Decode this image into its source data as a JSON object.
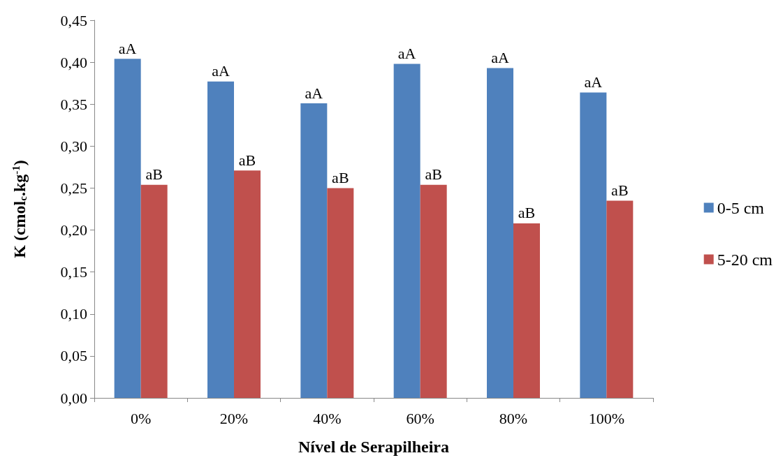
{
  "chart_data": {
    "type": "bar",
    "xlabel": "Nível de Serapilheira",
    "ylabel": "K (cmol$_{c}$.kg$^{-1}$)",
    "categories": [
      "0%",
      "20%",
      "40%",
      "60%",
      "80%",
      "100%"
    ],
    "series": [
      {
        "name": "0-5 cm",
        "color": "#4f81bd",
        "values": [
          0.404,
          0.377,
          0.351,
          0.398,
          0.393,
          0.364
        ]
      },
      {
        "name": "5-20 cm",
        "color": "#c0504d",
        "values": [
          0.254,
          0.271,
          0.25,
          0.254,
          0.208,
          0.235
        ]
      }
    ],
    "ylim": [
      0,
      0.45
    ],
    "yticks": [
      {
        "value": 0,
        "label": "0,00"
      },
      {
        "value": 0.05,
        "label": "0,05"
      },
      {
        "value": 0.1,
        "label": "0,10"
      },
      {
        "value": 0.15,
        "label": "0,15"
      },
      {
        "value": 0.2,
        "label": "0,20"
      },
      {
        "value": 0.25,
        "label": "0,25"
      },
      {
        "value": 0.3,
        "label": "0,30"
      },
      {
        "value": 0.35,
        "label": "0,35"
      },
      {
        "value": 0.4,
        "label": "0,40"
      },
      {
        "value": 0.45,
        "label": "0,45"
      }
    ],
    "annotations": [
      {
        "text": "aA",
        "x": "0%",
        "y": 0.404
      },
      {
        "text": "aB",
        "x": "0%",
        "y": 0.254
      },
      {
        "text": "aA",
        "x": "20%",
        "y": 0.377
      },
      {
        "text": "aB",
        "x": "20%",
        "y": 0.271
      },
      {
        "text": "aA",
        "x": "40%",
        "y": 0.351
      },
      {
        "text": "aB",
        "x": "40%",
        "y": 0.25
      },
      {
        "text": "aA",
        "x": "60%",
        "y": 0.398
      },
      {
        "text": "aB",
        "x": "60%",
        "y": 0.254
      },
      {
        "text": "aA",
        "x": "80%",
        "y": 0.393
      },
      {
        "text": "aB",
        "x": "80%",
        "y": 0.208
      },
      {
        "text": "aA",
        "x": "100%",
        "y": 0.364
      },
      {
        "text": "aB",
        "x": "100%",
        "y": 0.235
      }
    ],
    "grid": false,
    "legend": "right"
  }
}
